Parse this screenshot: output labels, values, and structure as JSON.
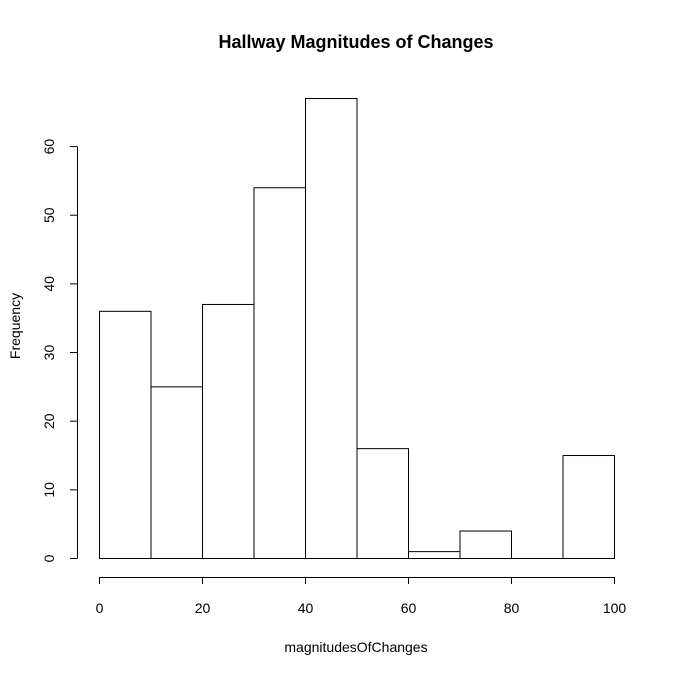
{
  "chart_data": {
    "type": "bar",
    "title": "Hallway Magnitudes of Changes",
    "xlabel": "magnitudesOfChanges",
    "ylabel": "Frequency",
    "bins": [
      {
        "from": 0,
        "to": 10,
        "count": 36
      },
      {
        "from": 10,
        "to": 20,
        "count": 25
      },
      {
        "from": 20,
        "to": 30,
        "count": 37
      },
      {
        "from": 30,
        "to": 40,
        "count": 54
      },
      {
        "from": 40,
        "to": 50,
        "count": 67
      },
      {
        "from": 50,
        "to": 60,
        "count": 16
      },
      {
        "from": 60,
        "to": 70,
        "count": 1
      },
      {
        "from": 70,
        "to": 80,
        "count": 4
      },
      {
        "from": 80,
        "to": 90,
        "count": 0
      },
      {
        "from": 90,
        "to": 100,
        "count": 15
      }
    ],
    "xlim": [
      0,
      100
    ],
    "ylim": [
      0,
      67
    ],
    "x_ticks": [
      0,
      20,
      40,
      60,
      80,
      100
    ],
    "y_ticks": [
      0,
      10,
      20,
      30,
      40,
      50,
      60
    ],
    "x_tick_labels": [
      "0",
      "20",
      "40",
      "60",
      "80",
      "100"
    ],
    "y_tick_labels": [
      "0",
      "10",
      "20",
      "30",
      "40",
      "50",
      "60"
    ],
    "grid": false,
    "legend": "none"
  }
}
